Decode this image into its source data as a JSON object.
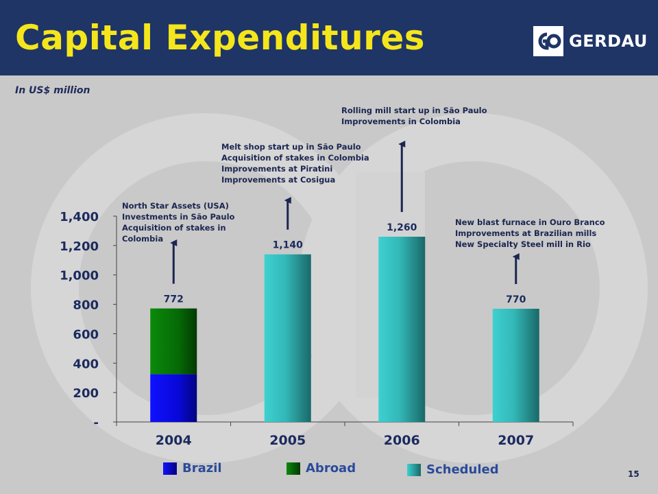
{
  "header": {
    "title": "Capital Expenditures",
    "logo_text": "GERDAU"
  },
  "subtitle": "In US$ million",
  "page_number": "15",
  "colors": {
    "header_bg": "#1f3566",
    "title": "#f5e61c",
    "brazil": "#0a0af0",
    "abroad": "#0a7a0a",
    "scheduled": "#3ac6c6",
    "arrow": "#1b2550"
  },
  "annotations": [
    {
      "year": "2004",
      "lines": [
        "North Star Assets (USA)",
        "Investments in São Paulo",
        "Acquisition of stakes in",
        "Colombia"
      ]
    },
    {
      "year": "2005",
      "lines": [
        "Melt shop start up in São Paulo",
        "Acquisition of stakes in Colombia",
        "Improvements at Piratini",
        "Improvements at Cosigua"
      ]
    },
    {
      "year": "2006",
      "lines": [
        "Rolling mill start up in São Paulo",
        "Improvements in Colombia"
      ]
    },
    {
      "year": "2007",
      "lines": [
        "New blast furnace in Ouro Branco",
        "Improvements at Brazilian mills",
        "New Specialty Steel mill in Rio"
      ]
    }
  ],
  "legend": {
    "brazil": "Brazil",
    "abroad": "Abroad",
    "scheduled": "Scheduled"
  },
  "chart_data": {
    "type": "bar",
    "stacked": true,
    "categories": [
      "2004",
      "2005",
      "2006",
      "2007"
    ],
    "series": [
      {
        "name": "Brazil",
        "values": [
          325,
          null,
          null,
          null
        ]
      },
      {
        "name": "Abroad",
        "values": [
          447,
          null,
          null,
          null
        ]
      },
      {
        "name": "Scheduled",
        "values": [
          null,
          1140,
          1260,
          770
        ]
      }
    ],
    "totals": [
      772,
      1140,
      1260,
      770
    ],
    "total_labels": [
      "772",
      "1,140",
      "1,260",
      "770"
    ],
    "ylim": [
      0,
      1400
    ],
    "yticks": [
      0,
      200,
      400,
      600,
      800,
      1000,
      1200,
      1400
    ],
    "ytick_labels": [
      "-",
      "200",
      "400",
      "600",
      "800",
      "1,000",
      "1,200",
      "1,400"
    ],
    "grid": false,
    "legend_position": "bottom"
  }
}
